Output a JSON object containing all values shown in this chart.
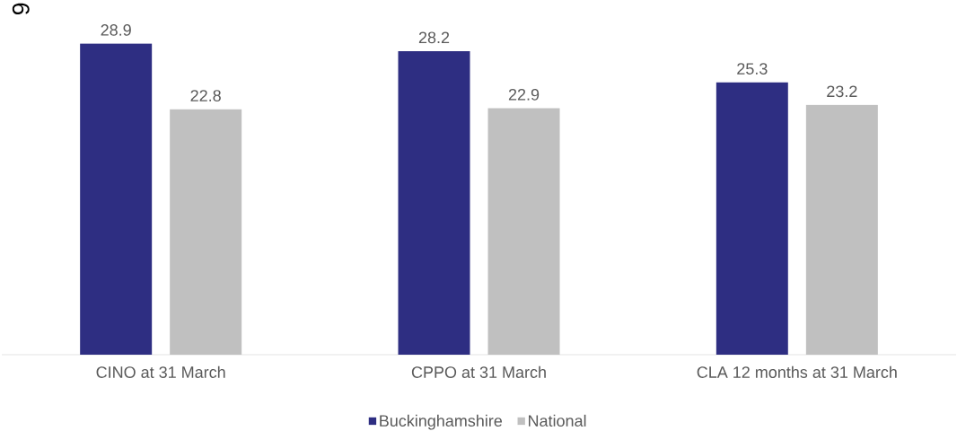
{
  "chart_data": {
    "type": "bar",
    "categories": [
      "CINO at 31 March",
      "CPPO at 31 March",
      "CLA 12 months at 31 March"
    ],
    "series": [
      {
        "name": "Buckinghamshire",
        "color": "#2e2e82",
        "values": [
          28.9,
          28.2,
          25.3
        ]
      },
      {
        "name": "National",
        "color": "#c0c0c0",
        "values": [
          22.8,
          22.9,
          23.2
        ]
      }
    ],
    "data_labels": true,
    "legend": "bottom",
    "annotations": [
      "9"
    ]
  }
}
